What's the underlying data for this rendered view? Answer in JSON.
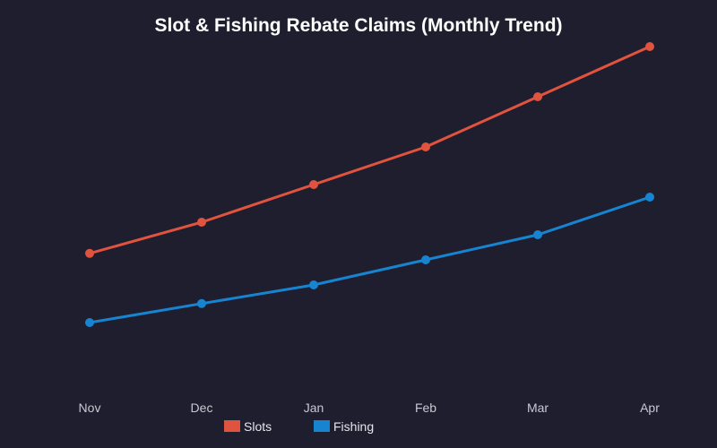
{
  "chart_data": {
    "type": "line",
    "title": "Slot & Fishing Rebate Claims (Monthly Trend)",
    "xlabel": "",
    "ylabel": "",
    "categories": [
      "Nov",
      "Dec",
      "Jan",
      "Feb",
      "Mar",
      "Apr"
    ],
    "ylim": [
      0,
      100
    ],
    "grid": false,
    "legend_position": "bottom-center",
    "series": [
      {
        "name": "Slots",
        "color": "#e0533f",
        "values": [
          36.8,
          45.5,
          56.0,
          66.5,
          80.5,
          94.5
        ]
      },
      {
        "name": "Fishing",
        "color": "#1784d1",
        "values": [
          17.5,
          22.8,
          28.0,
          35.0,
          42.0,
          52.5
        ]
      }
    ]
  }
}
